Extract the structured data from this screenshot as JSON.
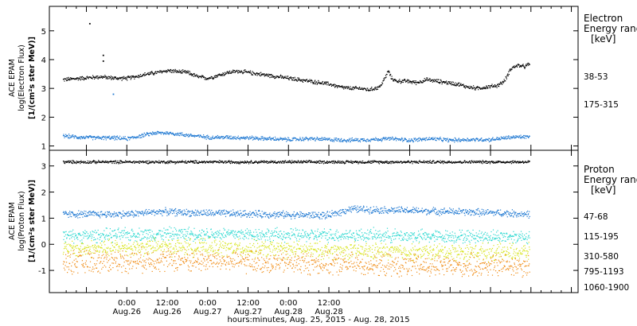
{
  "chart_data": [
    {
      "type": "scatter",
      "panel": "electron",
      "ylabel": [
        "ACE EPAM",
        "log(Electron Flux)",
        "[1/(cm²s ster MeV)]"
      ],
      "ylim": [
        0.85,
        5.85
      ],
      "yticks": [
        1,
        2,
        3,
        4,
        5
      ],
      "legend_title": [
        "Electron",
        "Energy ranges",
        "[keV]"
      ],
      "legend_placement": "right",
      "series": [
        {
          "name": "38-53",
          "color": "#000000",
          "points": [
            [
              -19,
              3.3
            ],
            [
              -14,
              3.35
            ],
            [
              -8,
              3.4
            ],
            [
              -3,
              3.35
            ],
            [
              0,
              3.35
            ],
            [
              3,
              3.42
            ],
            [
              6,
              3.5
            ],
            [
              9,
              3.55
            ],
            [
              12,
              3.62
            ],
            [
              15,
              3.58
            ],
            [
              18,
              3.55
            ],
            [
              21,
              3.4
            ],
            [
              24,
              3.35
            ],
            [
              27,
              3.45
            ],
            [
              30,
              3.55
            ],
            [
              33,
              3.6
            ],
            [
              36,
              3.55
            ],
            [
              39,
              3.5
            ],
            [
              42,
              3.45
            ],
            [
              45,
              3.4
            ],
            [
              48,
              3.35
            ],
            [
              51,
              3.3
            ],
            [
              54,
              3.25
            ],
            [
              57,
              3.2
            ],
            [
              60,
              3.15
            ],
            [
              63,
              3.05
            ],
            [
              66,
              3.0
            ],
            [
              69,
              3.0
            ],
            [
              72,
              2.95
            ],
            [
              75,
              3.05
            ],
            [
              76.5,
              3.35
            ],
            [
              77.5,
              3.6
            ],
            [
              78.5,
              3.35
            ],
            [
              80,
              3.25
            ],
            [
              83,
              3.25
            ],
            [
              86,
              3.2
            ],
            [
              89,
              3.3
            ],
            [
              92,
              3.25
            ],
            [
              95,
              3.2
            ],
            [
              98,
              3.15
            ],
            [
              101,
              3.05
            ],
            [
              104,
              3.0
            ],
            [
              107,
              3.05
            ],
            [
              110,
              3.1
            ],
            [
              112,
              3.25
            ],
            [
              114,
              3.7
            ],
            [
              116,
              3.8
            ],
            [
              118,
              3.75
            ],
            [
              119.5,
              3.85
            ]
          ],
          "outliers": [
            [
              -11,
              5.25
            ],
            [
              -7,
              4.15
            ],
            [
              -7,
              3.95
            ]
          ]
        },
        {
          "name": "175-315",
          "color": "#1e78d2",
          "points": [
            [
              -19,
              1.35
            ],
            [
              -14,
              1.3
            ],
            [
              -8,
              1.28
            ],
            [
              -4,
              1.28
            ],
            [
              0,
              1.25
            ],
            [
              4,
              1.35
            ],
            [
              8,
              1.45
            ],
            [
              12,
              1.45
            ],
            [
              16,
              1.4
            ],
            [
              20,
              1.35
            ],
            [
              24,
              1.3
            ],
            [
              30,
              1.3
            ],
            [
              36,
              1.28
            ],
            [
              42,
              1.25
            ],
            [
              48,
              1.22
            ],
            [
              54,
              1.25
            ],
            [
              60,
              1.22
            ],
            [
              66,
              1.2
            ],
            [
              72,
              1.22
            ],
            [
              78,
              1.25
            ],
            [
              84,
              1.2
            ],
            [
              90,
              1.25
            ],
            [
              96,
              1.2
            ],
            [
              102,
              1.22
            ],
            [
              108,
              1.22
            ],
            [
              114,
              1.3
            ],
            [
              119.5,
              1.32
            ]
          ],
          "outliers": [
            [
              -4,
              2.8
            ]
          ]
        }
      ]
    },
    {
      "type": "scatter",
      "panel": "proton",
      "ylabel": [
        "ACE EPAM",
        "log(Proton Flux)",
        "[1/(cm²s ster MeV)]"
      ],
      "ylim": [
        -1.85,
        3.6
      ],
      "yticks": [
        -1,
        0,
        1,
        2,
        3
      ],
      "legend_title": [
        "Proton",
        "Energy ranges",
        "[keV]"
      ],
      "legend_placement": "right",
      "series": [
        {
          "name": "47-68",
          "color": "#000000",
          "base": [
            [
              -19,
              3.15
            ],
            [
              119.5,
              3.15
            ]
          ],
          "spread": 0.05
        },
        {
          "name": "115-195",
          "color": "#1e78d2",
          "base": [
            [
              -19,
              1.15
            ],
            [
              0,
              1.15
            ],
            [
              10,
              1.25
            ],
            [
              20,
              1.2
            ],
            [
              40,
              1.15
            ],
            [
              60,
              1.1
            ],
            [
              66,
              1.35
            ],
            [
              80,
              1.3
            ],
            [
              96,
              1.25
            ],
            [
              110,
              1.2
            ],
            [
              119.5,
              1.15
            ]
          ],
          "spread": 0.12
        },
        {
          "name": "310-580",
          "color": "#2ad8d0",
          "base": [
            [
              -19,
              0.3
            ],
            [
              10,
              0.4
            ],
            [
              30,
              0.4
            ],
            [
              50,
              0.35
            ],
            [
              70,
              0.35
            ],
            [
              90,
              0.3
            ],
            [
              105,
              0.3
            ],
            [
              119.5,
              0.3
            ]
          ],
          "spread": 0.22
        },
        {
          "name": "795-1193",
          "color": "#d7e41c",
          "base": [
            [
              -19,
              -0.2
            ],
            [
              10,
              -0.1
            ],
            [
              30,
              -0.15
            ],
            [
              60,
              -0.25
            ],
            [
              90,
              -0.3
            ],
            [
              119.5,
              -0.3
            ]
          ],
          "spread": 0.28
        },
        {
          "name": "1060-1900",
          "color": "#f08c14",
          "base": [
            [
              -19,
              -0.7
            ],
            [
              10,
              -0.6
            ],
            [
              30,
              -0.65
            ],
            [
              60,
              -0.75
            ],
            [
              90,
              -0.85
            ],
            [
              119.5,
              -0.8
            ]
          ],
          "spread": 0.38
        }
      ]
    }
  ],
  "x_axis": {
    "xlim_hours": [
      -23,
      134
    ],
    "ticks": [
      {
        "t": 0,
        "time": "0:00",
        "date": "Aug.26"
      },
      {
        "t": 12,
        "time": "12:00",
        "date": "Aug.26"
      },
      {
        "t": 24,
        "time": "0:00",
        "date": "Aug.27"
      },
      {
        "t": 36,
        "time": "12:00",
        "date": "Aug.27"
      },
      {
        "t": 48,
        "time": "0:00",
        "date": "Aug.28"
      },
      {
        "t": 60,
        "time": "12:00",
        "date": "Aug.28"
      }
    ],
    "label": "hours:minutes, Aug. 25, 2015 - Aug. 28, 2015"
  }
}
